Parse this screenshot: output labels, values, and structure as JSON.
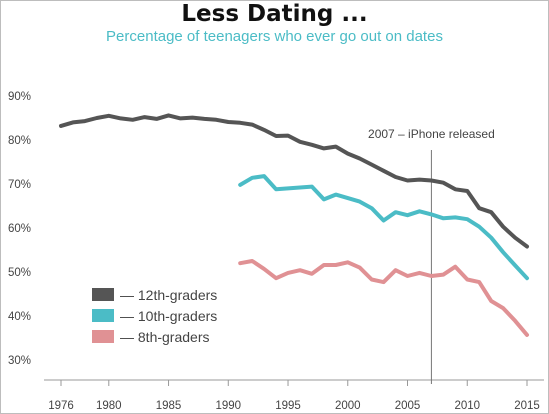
{
  "chart_data": {
    "type": "line",
    "title": "Less Dating ...",
    "subtitle": "Percentage of teenagers who ever go out on dates",
    "xlabel": "",
    "ylabel": "",
    "xlim": [
      1976,
      2015
    ],
    "ylim": [
      30,
      90
    ],
    "x_ticks": [
      "1976",
      "1980",
      "1985",
      "1990",
      "1995",
      "2000",
      "2005",
      "2010",
      "2015"
    ],
    "y_ticks": [
      "30%",
      "40%",
      "50%",
      "60%",
      "70%",
      "80%",
      "90%"
    ],
    "grid": false,
    "legend_position": "bottom-left",
    "annotation": {
      "x": 2007,
      "label": "2007 – iPhone released"
    },
    "series": [
      {
        "name": "— 12th-graders",
        "color": "#555555",
        "x": [
          1976,
          1977,
          1978,
          1979,
          1980,
          1981,
          1982,
          1983,
          1984,
          1985,
          1986,
          1987,
          1988,
          1989,
          1990,
          1991,
          1992,
          1993,
          1994,
          1995,
          1996,
          1997,
          1998,
          1999,
          2000,
          2001,
          2002,
          2003,
          2004,
          2005,
          2006,
          2007,
          2008,
          2009,
          2010,
          2011,
          2012,
          2013,
          2014,
          2015
        ],
        "values": [
          83.2,
          84.0,
          84.3,
          85.0,
          85.5,
          84.9,
          84.6,
          85.2,
          84.8,
          85.6,
          84.9,
          85.1,
          84.8,
          84.6,
          84.1,
          83.9,
          83.5,
          82.3,
          80.9,
          81.0,
          79.6,
          78.9,
          78.1,
          78.5,
          76.9,
          75.8,
          74.4,
          73.0,
          71.6,
          70.8,
          71.0,
          70.8,
          70.3,
          68.8,
          68.4,
          64.5,
          63.6,
          60.3,
          57.8,
          55.8
        ]
      },
      {
        "name": "— 10th-graders",
        "color": "#4bbcc6",
        "x": [
          1991,
          1992,
          1993,
          1994,
          1995,
          1996,
          1997,
          1998,
          1999,
          2000,
          2001,
          2002,
          2003,
          2004,
          2005,
          2006,
          2007,
          2008,
          2009,
          2010,
          2011,
          2012,
          2013,
          2014,
          2015
        ],
        "values": [
          69.8,
          71.4,
          71.8,
          68.8,
          69.0,
          69.2,
          69.4,
          66.5,
          67.6,
          66.8,
          66.0,
          64.5,
          61.7,
          63.6,
          62.9,
          63.8,
          63.1,
          62.2,
          62.4,
          62.0,
          60.3,
          57.8,
          54.5,
          51.5,
          48.6
        ]
      },
      {
        "name": "— 8th-graders",
        "color": "#e09194",
        "x": [
          1991,
          1992,
          1993,
          1994,
          1995,
          1996,
          1997,
          1998,
          1999,
          2000,
          2001,
          2002,
          2003,
          2004,
          2005,
          2006,
          2007,
          2008,
          2009,
          2010,
          2011,
          2012,
          2013,
          2014,
          2015
        ],
        "values": [
          52.0,
          52.5,
          50.7,
          48.6,
          49.8,
          50.4,
          49.6,
          51.6,
          51.6,
          52.2,
          51.0,
          48.3,
          47.7,
          50.4,
          49.1,
          49.8,
          49.1,
          49.4,
          51.2,
          48.3,
          47.7,
          43.4,
          41.8,
          38.9,
          35.7
        ]
      }
    ]
  }
}
